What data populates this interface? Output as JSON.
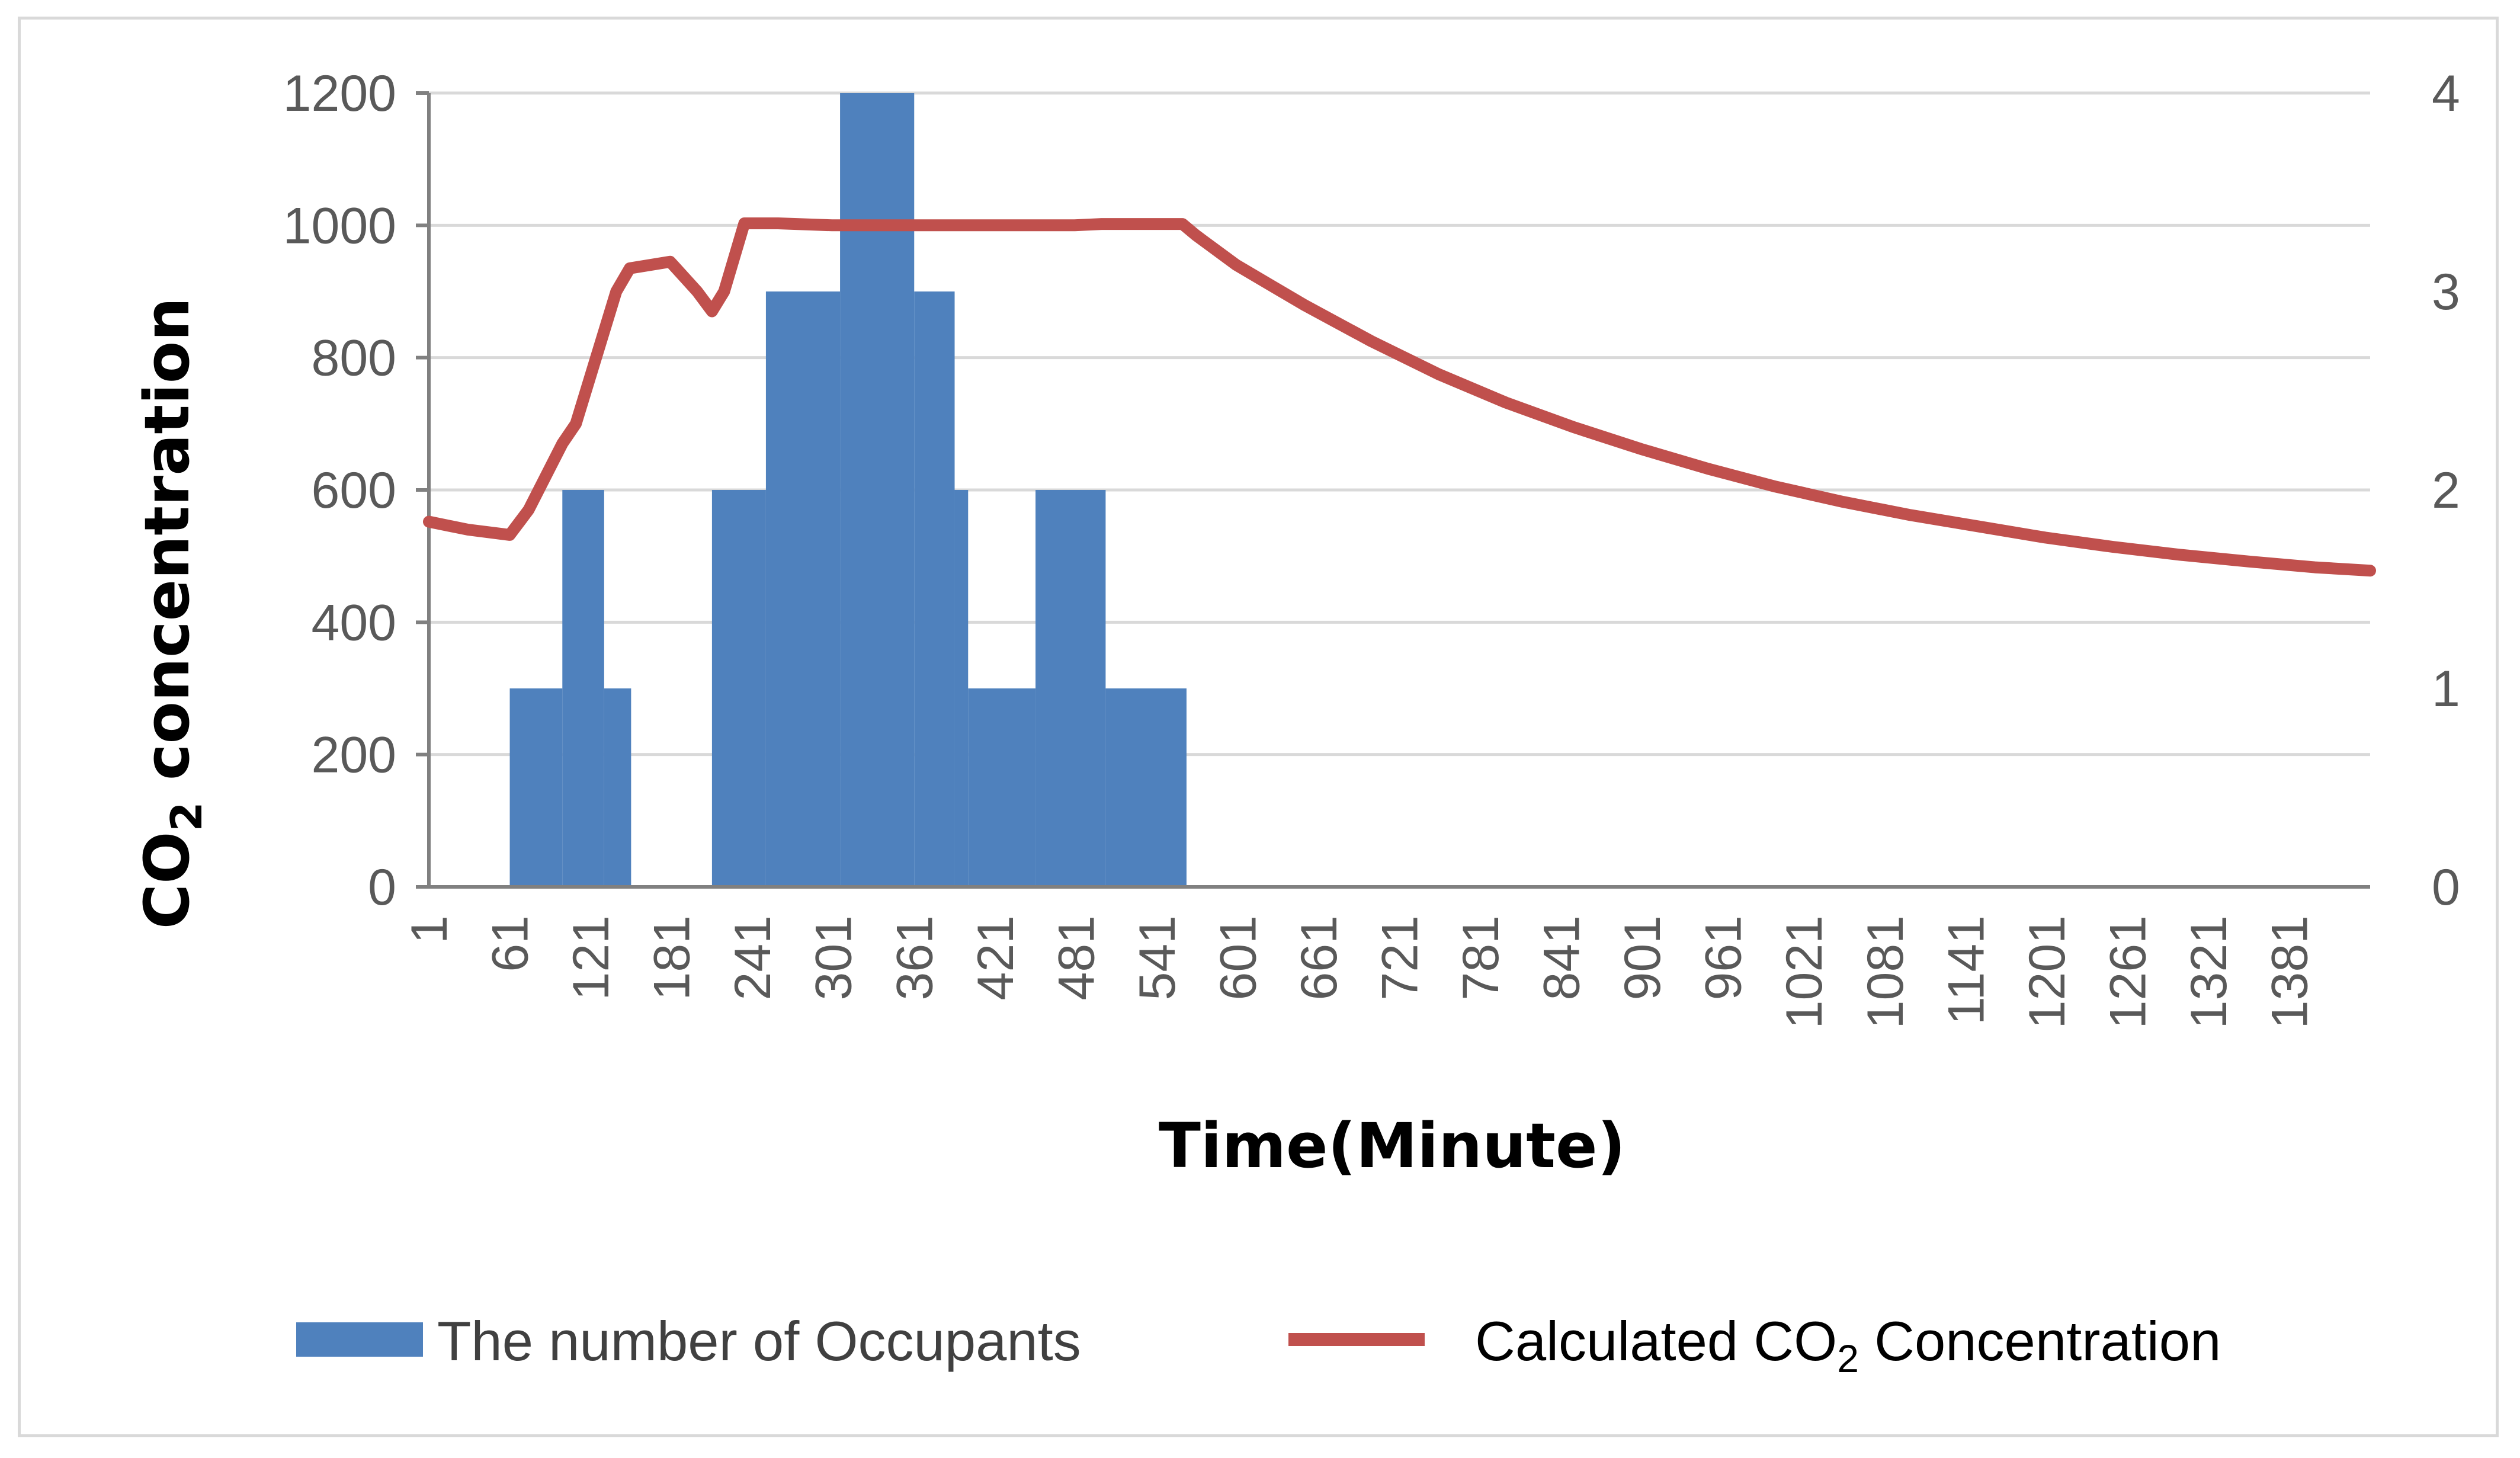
{
  "chart_data": {
    "type": "bar+line",
    "xlabel": "Time(Minute)",
    "ylabel_left_main": "CO",
    "ylabel_left_sub": "2",
    "ylabel_left_rest": " concentration",
    "x_tick_labels": [
      "1",
      "61",
      "121",
      "181",
      "241",
      "301",
      "361",
      "421",
      "481",
      "541",
      "601",
      "661",
      "721",
      "781",
      "841",
      "901",
      "961",
      "1021",
      "1081",
      "1141",
      "1201",
      "1261",
      "1321",
      "1381"
    ],
    "x_range": [
      1,
      1441
    ],
    "y_left": {
      "ylim": [
        0,
        1200
      ],
      "ticks": [
        0,
        200,
        400,
        600,
        800,
        1000,
        1200
      ]
    },
    "y_right": {
      "ylim": [
        0,
        4
      ],
      "ticks": [
        0,
        1,
        2,
        3,
        4
      ]
    },
    "gridlines": true,
    "legend_position": "bottom",
    "series": [
      {
        "name": "The number of Occupants",
        "type": "bar",
        "axis": "right",
        "color": "#4f81bd",
        "segments": [
          {
            "start": 61,
            "end": 100,
            "value": 1
          },
          {
            "start": 100,
            "end": 131,
            "value": 2
          },
          {
            "start": 131,
            "end": 151,
            "value": 1
          },
          {
            "start": 211,
            "end": 251,
            "value": 2
          },
          {
            "start": 251,
            "end": 306,
            "value": 3
          },
          {
            "start": 306,
            "end": 361,
            "value": 4
          },
          {
            "start": 361,
            "end": 391,
            "value": 3
          },
          {
            "start": 391,
            "end": 401,
            "value": 2
          },
          {
            "start": 401,
            "end": 451,
            "value": 1
          },
          {
            "start": 451,
            "end": 503,
            "value": 2
          },
          {
            "start": 503,
            "end": 563,
            "value": 1
          }
        ]
      },
      {
        "name_main": "Calculated CO",
        "name_sub": "2",
        "name_rest": " Concentration",
        "type": "line",
        "axis": "left",
        "color": "#c0504d",
        "x": [
          1,
          30,
          61,
          75,
          90,
          100,
          110,
          125,
          140,
          150,
          180,
          200,
          211,
          220,
          235,
          260,
          300,
          350,
          400,
          480,
          500,
          540,
          560,
          570,
          600,
          650,
          700,
          750,
          800,
          850,
          900,
          950,
          1000,
          1050,
          1100,
          1150,
          1200,
          1250,
          1300,
          1350,
          1400,
          1441
        ],
        "y": [
          552,
          540,
          532,
          570,
          630,
          670,
          700,
          800,
          900,
          935,
          945,
          900,
          870,
          900,
          1003,
          1003,
          1000,
          1000,
          1000,
          1000,
          1002,
          1002,
          1002,
          985,
          940,
          880,
          825,
          775,
          732,
          695,
          662,
          632,
          605,
          582,
          562,
          545,
          528,
          514,
          502,
          492,
          483,
          478
        ]
      }
    ]
  }
}
